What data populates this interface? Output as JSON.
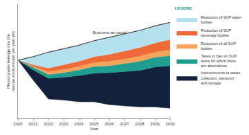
{
  "chart_data": {
    "type": "area",
    "x_label": "Year",
    "y_label": "Plastic waste leakage into the marine environment per year (kt)",
    "x": [
      2020,
      2021,
      2022,
      2023,
      2024,
      2025,
      2026,
      2027,
      2028,
      2029,
      2030
    ],
    "xlim": [
      2020,
      2030
    ],
    "xticks": [
      2020,
      2021,
      2022,
      2023,
      2024,
      2025,
      2026,
      2027,
      2028,
      2029,
      2030
    ],
    "ylim": [
      0,
      100
    ],
    "tick_labels": "x",
    "stacked": true,
    "legend": "right",
    "legend_title": "LEGEND",
    "baseline": {
      "name": "Business as usual",
      "color": "#4d4d4d",
      "values": [
        51,
        54,
        58,
        61,
        64,
        68,
        71,
        74,
        77,
        81,
        84
      ]
    },
    "series": [
      {
        "name": "Reduction of SUP water bottles",
        "color": "#b5e0ee",
        "values": [
          0,
          7,
          14,
          14,
          14,
          14,
          15,
          15,
          15,
          15,
          15
        ]
      },
      {
        "name": "Reduction of SUP beverage bottles",
        "color": "#ee6a38",
        "values": [
          0,
          1.5,
          3,
          4,
          4.5,
          5,
          6,
          7,
          7.5,
          8,
          9
        ]
      },
      {
        "name": "Reduction of all SUP bottles",
        "color": "#f5a45c",
        "values": [
          0,
          1,
          2.5,
          3,
          3,
          3.5,
          4,
          4,
          4.5,
          4.5,
          5
        ]
      },
      {
        "name": "Taxes or ban on SUP items for which there are alternatives",
        "color": "#1f9e8f",
        "values": [
          0,
          2,
          3.5,
          4,
          5,
          6,
          6,
          7,
          8,
          8.5,
          9
        ]
      },
      {
        "name": "Improvements to waste collection, transport and storage",
        "color": "#14213d",
        "values": [
          0,
          9,
          18,
          20,
          23,
          25,
          28,
          30,
          32,
          35,
          37
        ]
      }
    ]
  }
}
